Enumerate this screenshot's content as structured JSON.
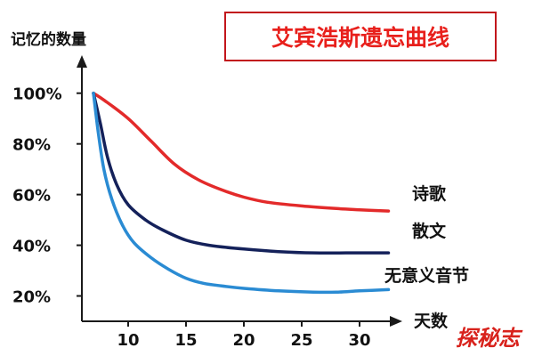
{
  "chart_data": {
    "type": "line",
    "title": "艾宾浩斯遗忘曲线",
    "xlabel": "天数",
    "ylabel": "记忆的数量",
    "xlim": [
      6,
      33
    ],
    "ylim": [
      10,
      115
    ],
    "x_ticks": [
      10,
      15,
      20,
      25,
      30
    ],
    "y_ticks": [
      100,
      80,
      60,
      40,
      20
    ],
    "y_tick_labels": [
      "100%",
      "80%",
      "60%",
      "40%",
      "20%"
    ],
    "grid": false,
    "legend": "none",
    "title_color": "#e8201c",
    "title_border_color": "#c2161c",
    "series": [
      {
        "name": "诗歌",
        "color": "#e32a2a",
        "x": [
          7,
          8,
          10,
          12,
          14,
          16,
          18,
          20,
          22,
          25,
          28,
          30,
          32.5
        ],
        "y": [
          100,
          97,
          90,
          81,
          72,
          66,
          62,
          59,
          57,
          55.5,
          54.5,
          54,
          53.5
        ]
      },
      {
        "name": "散文",
        "color": "#14215a",
        "x": [
          7,
          7.6,
          8.2,
          9,
          10,
          11.5,
          13,
          15,
          17,
          20,
          23,
          26,
          30,
          32.5
        ],
        "y": [
          100,
          88,
          75,
          64,
          56,
          50,
          46,
          42,
          40,
          38.5,
          37.5,
          37,
          37,
          37
        ]
      },
      {
        "name": "无意义音节",
        "color": "#2a8bd3",
        "x": [
          7,
          7.4,
          7.9,
          8.6,
          9.5,
          10.5,
          12,
          13.5,
          15,
          16.5,
          18,
          20,
          23,
          26,
          28,
          30,
          32.5
        ],
        "y": [
          100,
          85,
          70,
          58,
          48,
          41,
          35,
          30.5,
          27,
          25,
          24,
          23,
          22,
          21.5,
          21.5,
          22,
          22.5
        ]
      }
    ]
  },
  "watermark": {
    "text": "探秘志",
    "color": "#d8221c"
  }
}
